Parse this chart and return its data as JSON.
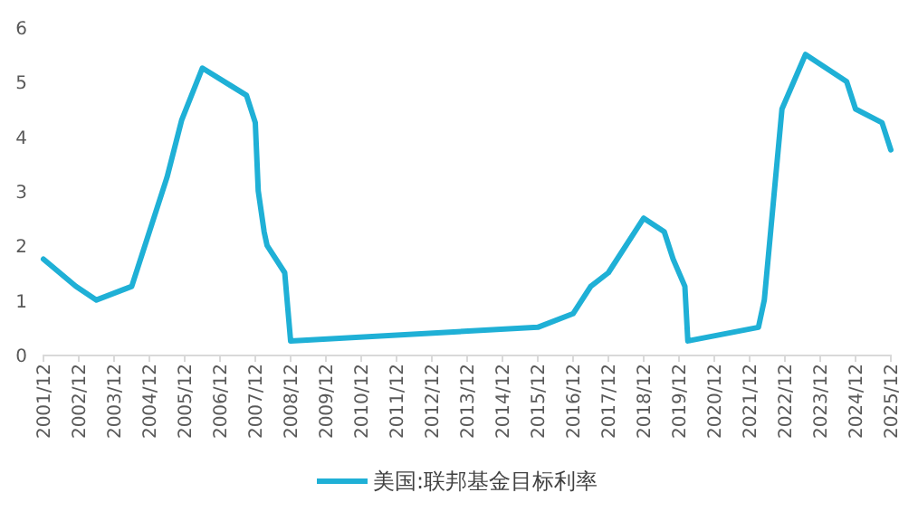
{
  "chart_data": {
    "type": "line",
    "x": [
      "2001-12",
      "2002-11",
      "2003-06",
      "2004-06",
      "2005-06",
      "2005-11",
      "2006-06",
      "2007-09",
      "2007-12",
      "2008-01",
      "2008-03",
      "2008-04",
      "2008-10",
      "2008-12",
      "2015-12",
      "2016-12",
      "2017-06",
      "2017-12",
      "2018-12",
      "2019-07",
      "2019-10",
      "2020-02",
      "2020-03",
      "2022-03",
      "2022-05",
      "2022-11",
      "2023-05",
      "2023-07",
      "2024-09",
      "2024-12",
      "2025-09",
      "2025-12"
    ],
    "series": [
      {
        "name": "美国:联邦基金目标利率",
        "color": "#1fb0d6",
        "values": [
          1.75,
          1.25,
          1.0,
          1.25,
          3.25,
          4.3,
          5.25,
          4.75,
          4.25,
          3.0,
          2.25,
          2.0,
          1.5,
          0.25,
          0.5,
          0.75,
          1.25,
          1.5,
          2.5,
          2.25,
          1.75,
          1.25,
          0.25,
          0.5,
          1.0,
          4.5,
          5.25,
          5.5,
          5.0,
          4.5,
          4.25,
          3.75
        ]
      }
    ],
    "xlim": [
      "2001-12",
      "2025-12"
    ],
    "xticks": [
      {
        "value": "2001-12",
        "label": "2001/12"
      },
      {
        "value": "2002-12",
        "label": "2002/12"
      },
      {
        "value": "2003-12",
        "label": "2003/12"
      },
      {
        "value": "2004-12",
        "label": "2004/12"
      },
      {
        "value": "2005-12",
        "label": "2005/12"
      },
      {
        "value": "2006-12",
        "label": "2006/12"
      },
      {
        "value": "2007-12",
        "label": "2007/12"
      },
      {
        "value": "2008-12",
        "label": "2008/12"
      },
      {
        "value": "2009-12",
        "label": "2009/12"
      },
      {
        "value": "2010-12",
        "label": "2010/12"
      },
      {
        "value": "2011-12",
        "label": "2011/12"
      },
      {
        "value": "2012-12",
        "label": "2012/12"
      },
      {
        "value": "2013-12",
        "label": "2013/12"
      },
      {
        "value": "2014-12",
        "label": "2014/12"
      },
      {
        "value": "2015-12",
        "label": "2015/12"
      },
      {
        "value": "2016-12",
        "label": "2016/12"
      },
      {
        "value": "2017-12",
        "label": "2017/12"
      },
      {
        "value": "2018-12",
        "label": "2018/12"
      },
      {
        "value": "2019-12",
        "label": "2019/12"
      },
      {
        "value": "2020-12",
        "label": "2020/12"
      },
      {
        "value": "2021-12",
        "label": "2021/12"
      },
      {
        "value": "2022-12",
        "label": "2022/12"
      },
      {
        "value": "2023-12",
        "label": "2023/12"
      },
      {
        "value": "2024-12",
        "label": "2024/12"
      },
      {
        "value": "2025-12",
        "label": "2025/12"
      }
    ],
    "ylim": [
      0,
      6
    ],
    "yticks": [
      0,
      1,
      2,
      3,
      4,
      5,
      6
    ],
    "grid": false,
    "legend": "bottom",
    "marker": "none",
    "line_style": "solid"
  }
}
